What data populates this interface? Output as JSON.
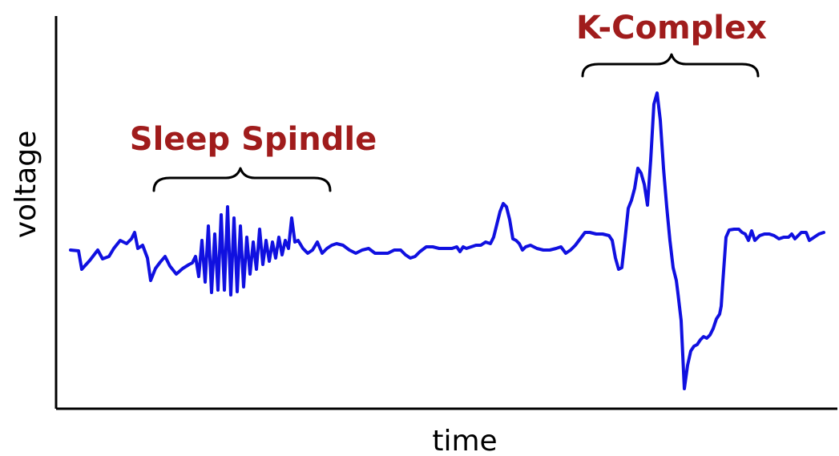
{
  "axes": {
    "xlabel": "time",
    "ylabel": "voltage"
  },
  "annotations": [
    {
      "key": "sleep_spindle",
      "label": "Sleep Spindle"
    },
    {
      "key": "k_complex",
      "label": "K-Complex"
    }
  ],
  "colors": {
    "trace": "#1010e0",
    "annotation": "#a01c1c",
    "axis": "#000000"
  }
}
